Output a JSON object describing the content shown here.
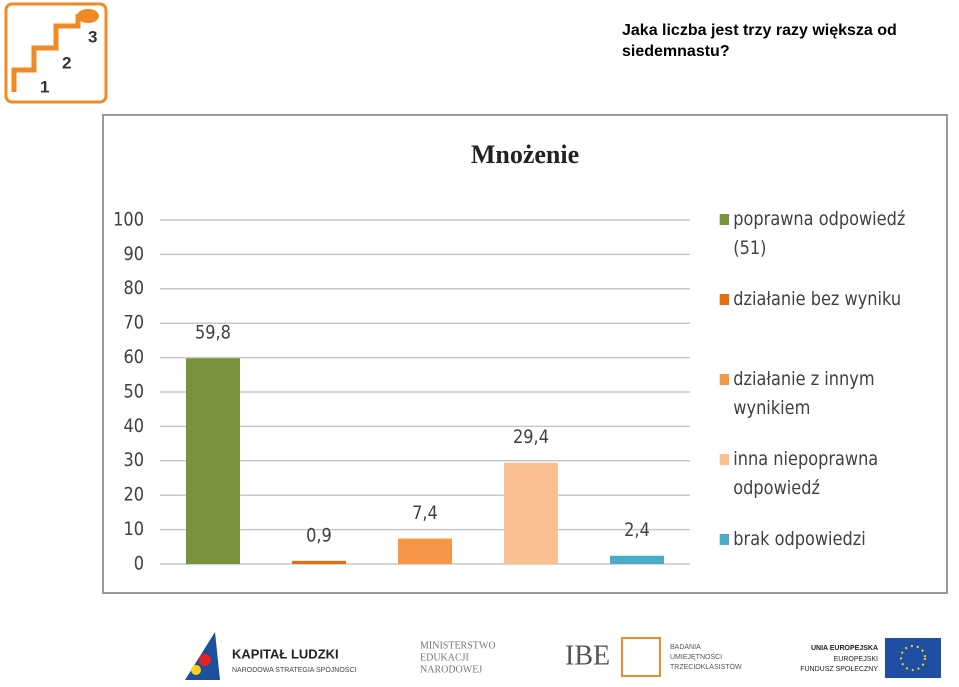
{
  "question": "Jaka liczba jest trzy razy większa od siedemnastu?",
  "top_logo": {
    "labels": [
      "1",
      "2",
      "3"
    ]
  },
  "footer_logos": {
    "kapital": {
      "title": "KAPITAŁ LUDZKI",
      "subtitle": "NARODOWA STRATEGIA SPÓJNOŚCI"
    },
    "men": {
      "lines": [
        "MINISTERSTWO",
        "EDUKACJI",
        "NARODOWEJ"
      ]
    },
    "ibe": {
      "title": "IBE",
      "lines": [
        "BADANIA",
        "UMIEJĘTNOŚCI",
        "TRZECIOKLASISTÓW"
      ]
    },
    "ue": {
      "lines": [
        "UNIA EUROPEJSKA",
        "EUROPEJSKI",
        "FUNDUSZ SPOŁECZNY"
      ]
    }
  },
  "chart_data": {
    "type": "bar",
    "title": "Mnożenie",
    "categories": [
      "poprawna odpowiedź (51)",
      "działanie bez wyniku",
      "działanie z innym wynikiem",
      "inna niepoprawna odpowiedź",
      "brak odpowiedzi"
    ],
    "values": [
      59.8,
      0.9,
      7.4,
      29.4,
      2.4
    ],
    "value_labels": [
      "59,8",
      "0,9",
      "7,4",
      "29,4",
      "2,4"
    ],
    "colors": [
      "#77933c",
      "#e46c0a",
      "#f79646",
      "#fac090",
      "#4bacc6"
    ],
    "ylim": [
      0,
      100
    ],
    "yticks": [
      0,
      10,
      20,
      30,
      40,
      50,
      60,
      70,
      80,
      90,
      100
    ],
    "grid": true,
    "legend": "right"
  }
}
